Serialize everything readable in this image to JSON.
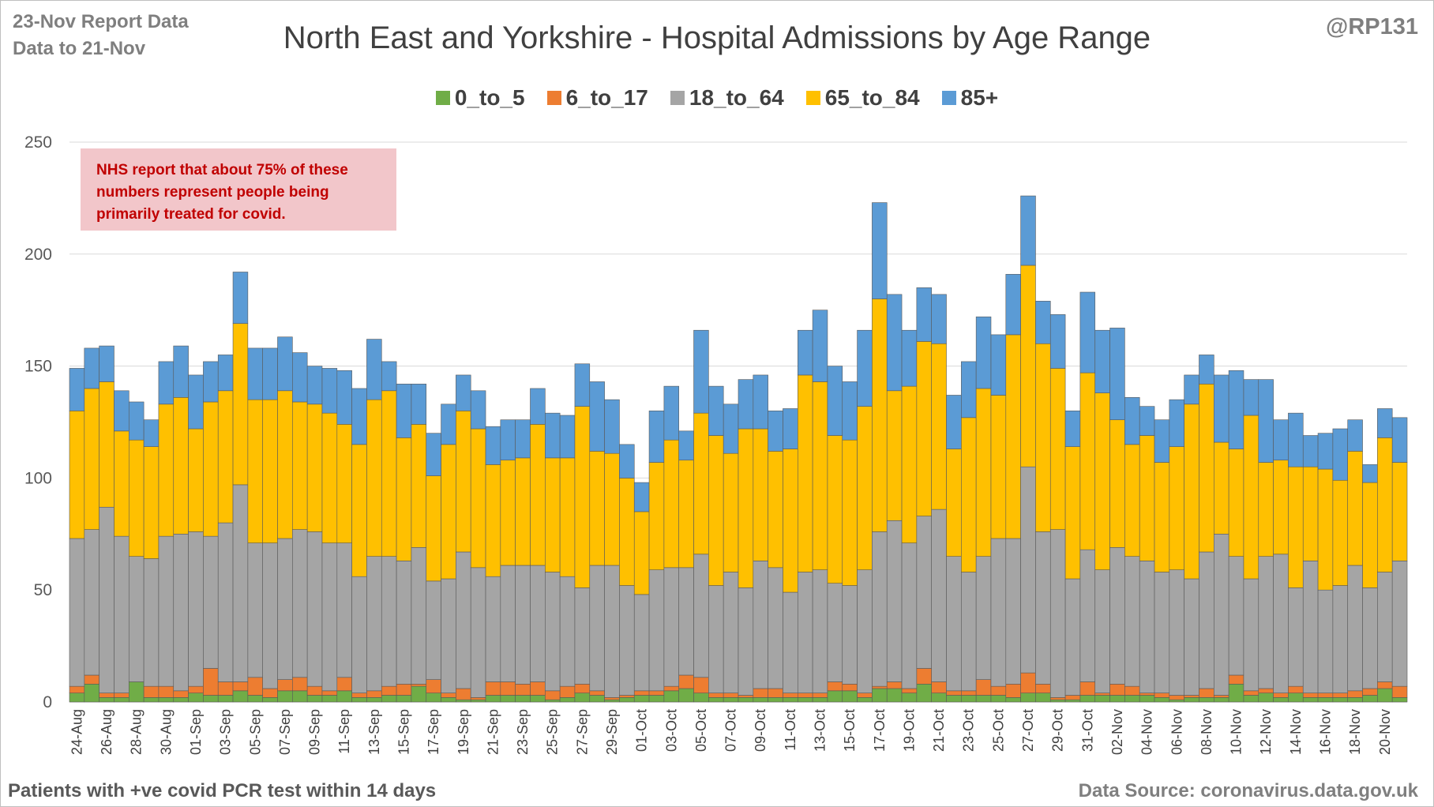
{
  "header": {
    "report_line1": "23-Nov Report Data",
    "report_line2": "Data to 21-Nov",
    "handle": "@RP131"
  },
  "annotation": {
    "line1": "NHS report that about 75% of these",
    "line2": "numbers represent people being",
    "line3": "primarily treated for covid."
  },
  "footer": {
    "left": "Patients with  +ve covid PCR test within 14 days",
    "right": "Data Source: coronavirus.data.gov.uk"
  },
  "chart_data": {
    "type": "bar",
    "stacked": true,
    "title": "North East and Yorkshire - Hospital Admissions by Age Range",
    "legend_position": "top",
    "grid": true,
    "ylim": [
      0,
      250
    ],
    "yticks": [
      0,
      50,
      100,
      150,
      200,
      250
    ],
    "categories": [
      "24-Aug",
      "25-Aug",
      "26-Aug",
      "27-Aug",
      "28-Aug",
      "29-Aug",
      "30-Aug",
      "31-Aug",
      "01-Sep",
      "02-Sep",
      "03-Sep",
      "04-Sep",
      "05-Sep",
      "06-Sep",
      "07-Sep",
      "08-Sep",
      "09-Sep",
      "10-Sep",
      "11-Sep",
      "12-Sep",
      "13-Sep",
      "14-Sep",
      "15-Sep",
      "16-Sep",
      "17-Sep",
      "18-Sep",
      "19-Sep",
      "20-Sep",
      "21-Sep",
      "22-Sep",
      "23-Sep",
      "24-Sep",
      "25-Sep",
      "26-Sep",
      "27-Sep",
      "28-Sep",
      "29-Sep",
      "30-Sep",
      "01-Oct",
      "02-Oct",
      "03-Oct",
      "04-Oct",
      "05-Oct",
      "06-Oct",
      "07-Oct",
      "08-Oct",
      "09-Oct",
      "10-Oct",
      "11-Oct",
      "12-Oct",
      "13-Oct",
      "14-Oct",
      "15-Oct",
      "16-Oct",
      "17-Oct",
      "18-Oct",
      "19-Oct",
      "20-Oct",
      "21-Oct",
      "22-Oct",
      "23-Oct",
      "24-Oct",
      "25-Oct",
      "26-Oct",
      "27-Oct",
      "28-Oct",
      "29-Oct",
      "30-Oct",
      "31-Oct",
      "01-Nov",
      "02-Nov",
      "03-Nov",
      "04-Nov",
      "05-Nov",
      "06-Nov",
      "07-Nov",
      "08-Nov",
      "09-Nov",
      "10-Nov",
      "11-Nov",
      "12-Nov",
      "13-Nov",
      "14-Nov",
      "15-Nov",
      "16-Nov",
      "17-Nov",
      "18-Nov",
      "19-Nov",
      "20-Nov",
      "21-Nov"
    ],
    "series": [
      {
        "name": "0_to_5",
        "color": "#70ad47",
        "values": [
          4,
          8,
          2,
          2,
          9,
          2,
          2,
          2,
          4,
          3,
          3,
          5,
          3,
          2,
          5,
          5,
          3,
          3,
          5,
          2,
          2,
          3,
          3,
          7,
          4,
          2,
          1,
          1,
          3,
          3,
          3,
          3,
          1,
          2,
          4,
          3,
          1,
          2,
          3,
          3,
          5,
          6,
          4,
          2,
          2,
          2,
          2,
          2,
          2,
          2,
          2,
          5,
          5,
          2,
          6,
          6,
          4,
          8,
          4,
          3,
          3,
          3,
          3,
          2,
          4,
          4,
          1,
          1,
          3,
          3,
          3,
          3,
          3,
          2,
          1,
          2,
          2,
          2,
          8,
          3,
          4,
          2,
          4,
          2,
          2,
          2,
          2,
          3,
          6,
          2
        ]
      },
      {
        "name": "6_to_17",
        "color": "#ed7d31",
        "values": [
          3,
          4,
          2,
          2,
          0,
          5,
          5,
          3,
          3,
          12,
          6,
          4,
          8,
          4,
          5,
          6,
          4,
          2,
          6,
          2,
          3,
          4,
          5,
          1,
          6,
          2,
          5,
          1,
          6,
          6,
          5,
          6,
          4,
          5,
          4,
          2,
          1,
          1,
          2,
          2,
          2,
          6,
          7,
          2,
          2,
          1,
          4,
          4,
          2,
          2,
          2,
          4,
          3,
          2,
          1,
          3,
          2,
          7,
          5,
          2,
          2,
          7,
          4,
          6,
          9,
          4,
          1,
          2,
          6,
          1,
          5,
          4,
          1,
          2,
          2,
          1,
          4,
          1,
          4,
          2,
          2,
          2,
          3,
          2,
          2,
          2,
          3,
          3,
          3,
          5
        ]
      },
      {
        "name": "18_to_64",
        "color": "#a5a5a5",
        "values": [
          66,
          65,
          83,
          70,
          56,
          57,
          67,
          70,
          69,
          59,
          71,
          88,
          60,
          65,
          63,
          66,
          69,
          66,
          60,
          52,
          60,
          58,
          55,
          61,
          44,
          51,
          61,
          58,
          47,
          52,
          53,
          52,
          53,
          49,
          43,
          56,
          59,
          49,
          43,
          54,
          53,
          48,
          55,
          48,
          54,
          48,
          57,
          54,
          45,
          54,
          55,
          44,
          44,
          55,
          69,
          72,
          65,
          68,
          77,
          60,
          53,
          55,
          66,
          65,
          92,
          68,
          75,
          52,
          59,
          55,
          61,
          58,
          59,
          54,
          56,
          52,
          61,
          72,
          53,
          50,
          59,
          62,
          44,
          59,
          46,
          48,
          56,
          45,
          49,
          56
        ]
      },
      {
        "name": "65_to_84",
        "color": "#ffc000",
        "values": [
          57,
          63,
          56,
          47,
          52,
          50,
          59,
          61,
          46,
          60,
          59,
          72,
          64,
          64,
          66,
          57,
          57,
          58,
          53,
          59,
          70,
          74,
          55,
          55,
          47,
          60,
          63,
          62,
          50,
          47,
          48,
          63,
          51,
          53,
          81,
          51,
          50,
          48,
          37,
          48,
          57,
          48,
          63,
          67,
          53,
          71,
          59,
          52,
          64,
          88,
          84,
          66,
          65,
          73,
          104,
          58,
          70,
          78,
          74,
          48,
          69,
          75,
          64,
          91,
          90,
          84,
          72,
          59,
          79,
          79,
          57,
          50,
          56,
          49,
          55,
          78,
          75,
          41,
          48,
          73,
          42,
          42,
          54,
          42,
          54,
          47,
          51,
          47,
          60,
          44
        ]
      },
      {
        "name": "85+",
        "color": "#5b9bd5",
        "values": [
          19,
          18,
          16,
          18,
          17,
          12,
          19,
          23,
          24,
          18,
          16,
          23,
          23,
          23,
          24,
          22,
          17,
          20,
          24,
          25,
          27,
          13,
          24,
          18,
          19,
          18,
          16,
          17,
          17,
          18,
          17,
          16,
          20,
          19,
          19,
          31,
          24,
          15,
          13,
          23,
          24,
          13,
          37,
          22,
          22,
          22,
          24,
          18,
          18,
          20,
          32,
          31,
          26,
          34,
          43,
          43,
          25,
          24,
          22,
          24,
          25,
          32,
          27,
          27,
          31,
          19,
          24,
          16,
          36,
          28,
          41,
          21,
          13,
          19,
          21,
          13,
          13,
          30,
          35,
          16,
          37,
          18,
          24,
          14,
          16,
          23,
          14,
          8,
          13,
          20
        ]
      }
    ],
    "xtick_labels_shown_every": 2
  }
}
